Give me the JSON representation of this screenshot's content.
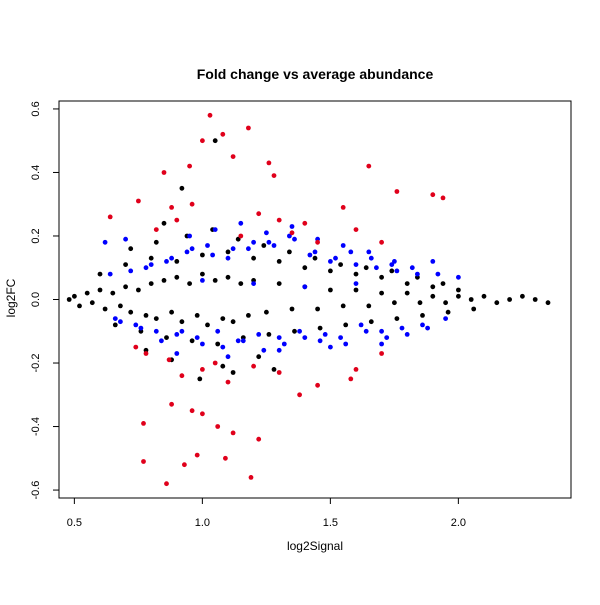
{
  "chart_data": {
    "type": "scatter",
    "title": "Fold change vs average abundance",
    "xlabel": "log2Signal",
    "ylabel": "log2FC",
    "xlim": [
      0.44,
      2.44
    ],
    "ylim": [
      -0.625,
      0.625
    ],
    "x_ticks": [
      "0.5",
      "1.0",
      "1.5",
      "2.0"
    ],
    "y_ticks": [
      "-0.6",
      "-0.4",
      "-0.2",
      "0.0",
      "0.2",
      "0.4",
      "0.6"
    ],
    "x_tick_values": [
      0.5,
      1.0,
      1.5,
      2.0
    ],
    "y_tick_values": [
      -0.6,
      -0.4,
      -0.2,
      0.0,
      0.2,
      0.4,
      0.6
    ],
    "grid": false,
    "legend": "none",
    "colors": {
      "not_significant": "#000000",
      "significant": "#0000ff",
      "high_fold_change": "#e0001b"
    },
    "series": [
      {
        "color": "#000000",
        "x": [
          0.48,
          0.5,
          0.52,
          0.55,
          0.57,
          0.6,
          0.62,
          0.65,
          0.68,
          0.7,
          0.72,
          0.75,
          0.78,
          0.8,
          0.82,
          0.85,
          0.88,
          0.9,
          0.92,
          0.95,
          0.98,
          1.0,
          1.02,
          1.05,
          1.08,
          1.1,
          1.12,
          1.15,
          1.18,
          1.2,
          1.25,
          1.3,
          1.35,
          1.4,
          1.45,
          1.5,
          1.55,
          1.6,
          1.65,
          1.7,
          1.75,
          1.8,
          1.85,
          1.9,
          1.95,
          2.0,
          2.05,
          2.1,
          2.15,
          2.2,
          2.25,
          2.3,
          2.35,
          0.6,
          0.7,
          0.8,
          0.9,
          1.0,
          1.1,
          1.2,
          1.3,
          1.4,
          1.5,
          1.6,
          1.7,
          1.8,
          1.9,
          2.0,
          0.66,
          0.76,
          0.86,
          0.96,
          1.06,
          1.16,
          1.26,
          1.36,
          1.46,
          1.56,
          1.66,
          1.76,
          1.86,
          1.96,
          2.06,
          0.72,
          0.82,
          0.94,
          1.04,
          1.14,
          1.24,
          1.34,
          1.44,
          1.54,
          1.64,
          1.74,
          1.84,
          1.94,
          0.78,
          0.88,
          1.08,
          1.12,
          1.22,
          0.85,
          0.99,
          1.28,
          0.92,
          1.05
        ],
        "y": [
          0.0,
          0.01,
          -0.02,
          0.02,
          -0.01,
          0.03,
          -0.03,
          0.02,
          -0.02,
          0.04,
          -0.04,
          0.03,
          -0.05,
          0.05,
          -0.06,
          0.06,
          -0.04,
          0.07,
          -0.07,
          0.05,
          -0.05,
          0.08,
          -0.08,
          0.06,
          -0.06,
          0.07,
          -0.07,
          0.05,
          -0.05,
          0.06,
          -0.04,
          0.05,
          -0.03,
          0.04,
          -0.03,
          0.03,
          -0.02,
          0.03,
          -0.02,
          0.02,
          -0.01,
          0.02,
          -0.01,
          0.01,
          -0.01,
          0.01,
          0.0,
          0.01,
          -0.01,
          0.0,
          0.01,
          0.0,
          -0.01,
          0.08,
          0.11,
          0.13,
          0.12,
          0.14,
          0.15,
          0.13,
          0.12,
          0.1,
          0.09,
          0.08,
          0.07,
          0.05,
          0.04,
          0.03,
          -0.08,
          -0.1,
          -0.12,
          -0.13,
          -0.14,
          -0.12,
          -0.11,
          -0.1,
          -0.09,
          -0.08,
          -0.07,
          -0.06,
          -0.05,
          -0.04,
          -0.03,
          0.16,
          0.18,
          0.2,
          0.22,
          0.19,
          0.17,
          0.15,
          0.13,
          0.11,
          0.1,
          0.09,
          0.07,
          0.05,
          -0.16,
          -0.19,
          -0.21,
          -0.23,
          -0.18,
          0.24,
          -0.25,
          -0.22,
          0.35,
          0.5
        ]
      },
      {
        "color": "#0000ff",
        "x": [
          0.62,
          0.66,
          0.7,
          0.74,
          0.78,
          0.82,
          0.86,
          0.9,
          0.94,
          0.98,
          1.02,
          1.06,
          1.1,
          1.14,
          1.18,
          1.22,
          1.26,
          1.3,
          1.34,
          1.38,
          1.42,
          1.46,
          1.5,
          1.54,
          1.58,
          1.62,
          1.66,
          1.7,
          1.74,
          1.78,
          1.82,
          1.86,
          1.9,
          1.95,
          2.0,
          0.64,
          0.68,
          0.72,
          0.76,
          0.8,
          0.84,
          0.88,
          0.92,
          0.96,
          1.0,
          1.04,
          1.08,
          1.12,
          1.16,
          1.2,
          1.24,
          1.28,
          1.32,
          1.36,
          1.4,
          1.44,
          1.48,
          1.52,
          1.56,
          1.6,
          1.64,
          1.68,
          1.72,
          1.76,
          1.8,
          1.84,
          1.88,
          1.92,
          0.95,
          1.05,
          1.15,
          1.25,
          1.35,
          1.45,
          1.55,
          1.65,
          1.75,
          0.9,
          1.1,
          1.3,
          1.5,
          1.7,
          1.0,
          1.2,
          1.4,
          1.6
        ],
        "y": [
          0.18,
          -0.06,
          0.19,
          -0.08,
          0.1,
          -0.1,
          0.12,
          -0.11,
          0.15,
          -0.12,
          0.17,
          -0.1,
          0.13,
          -0.13,
          0.16,
          -0.11,
          0.18,
          -0.12,
          0.2,
          -0.1,
          0.14,
          -0.13,
          0.12,
          -0.12,
          0.15,
          -0.08,
          0.13,
          -0.1,
          0.11,
          -0.09,
          0.1,
          -0.08,
          0.12,
          -0.06,
          0.07,
          0.08,
          -0.07,
          0.09,
          -0.09,
          0.11,
          -0.13,
          0.13,
          -0.1,
          0.16,
          -0.14,
          0.14,
          -0.15,
          0.16,
          -0.13,
          0.18,
          -0.16,
          0.17,
          -0.14,
          0.19,
          -0.12,
          0.15,
          -0.11,
          0.13,
          -0.14,
          0.11,
          -0.1,
          0.1,
          -0.12,
          0.09,
          -0.11,
          0.08,
          -0.09,
          0.08,
          0.2,
          0.22,
          0.24,
          0.21,
          0.23,
          0.19,
          0.17,
          0.15,
          0.12,
          -0.17,
          -0.18,
          -0.16,
          -0.15,
          -0.14,
          0.06,
          0.05,
          0.04,
          0.05
        ]
      },
      {
        "color": "#e0001b",
        "x": [
          1.03,
          1.08,
          1.18,
          1.12,
          0.95,
          1.0,
          0.85,
          1.26,
          1.28,
          1.65,
          1.76,
          1.9,
          1.94,
          1.55,
          0.96,
          0.88,
          1.22,
          1.3,
          1.4,
          0.64,
          0.75,
          0.82,
          0.9,
          1.35,
          1.15,
          1.6,
          1.7,
          1.45,
          0.74,
          0.78,
          0.87,
          0.92,
          1.0,
          1.05,
          1.1,
          1.2,
          1.3,
          1.45,
          1.6,
          1.7,
          0.77,
          0.88,
          0.96,
          1.0,
          1.06,
          1.12,
          0.77,
          0.93,
          1.09,
          1.19,
          0.86,
          0.98,
          1.22,
          1.38,
          1.58
        ],
        "y": [
          0.58,
          0.52,
          0.54,
          0.45,
          0.42,
          0.5,
          0.4,
          0.43,
          0.39,
          0.42,
          0.34,
          0.33,
          0.32,
          0.29,
          0.3,
          0.29,
          0.27,
          0.25,
          0.24,
          0.26,
          0.31,
          0.22,
          0.25,
          0.21,
          0.2,
          0.22,
          0.18,
          0.18,
          -0.15,
          -0.17,
          -0.19,
          -0.24,
          -0.22,
          -0.2,
          -0.26,
          -0.21,
          -0.23,
          -0.27,
          -0.22,
          -0.17,
          -0.39,
          -0.33,
          -0.35,
          -0.36,
          -0.4,
          -0.42,
          -0.51,
          -0.52,
          -0.5,
          -0.56,
          -0.58,
          -0.49,
          -0.44,
          -0.3,
          -0.25
        ]
      }
    ]
  }
}
